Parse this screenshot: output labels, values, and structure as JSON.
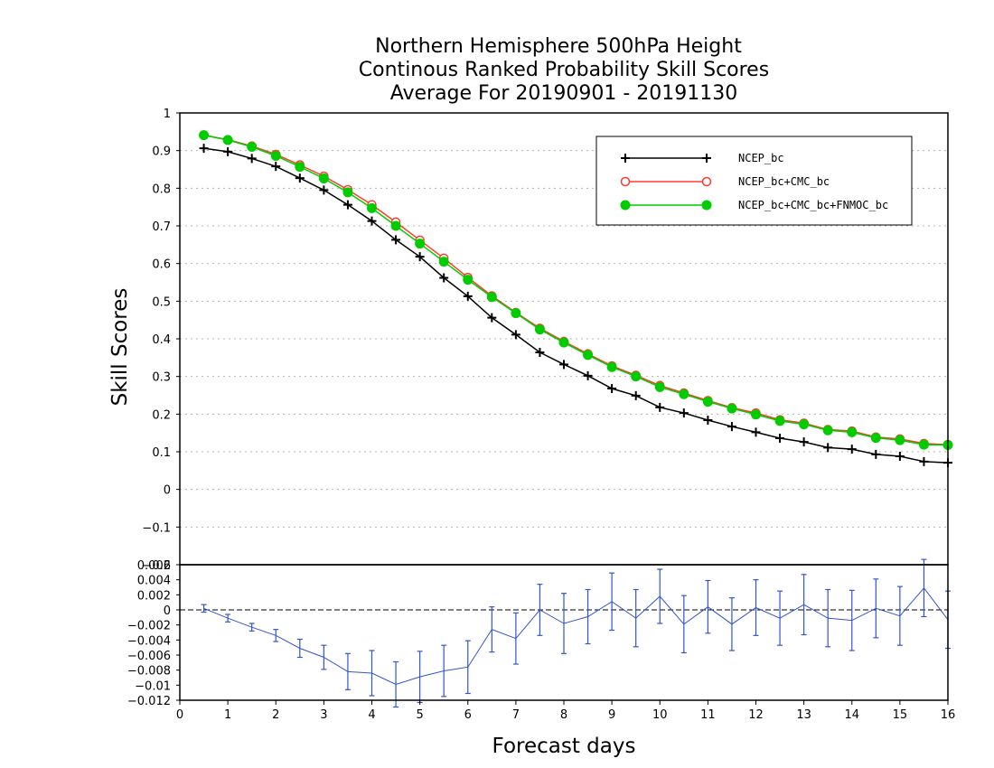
{
  "chart_data": [
    {
      "type": "line",
      "title": [
        "Northern Hemisphere 500hPa Height",
        "Continous Ranked Probability Skill Scores",
        "Average For 20190901 - 20191130"
      ],
      "xlabel": "Forecast days",
      "ylabel": "Skill Scores",
      "xlim": [
        0,
        16
      ],
      "ylim": [
        -0.2,
        1
      ],
      "grid": true,
      "legend_position": "top-right",
      "x": [
        0.5,
        1,
        1.5,
        2,
        2.5,
        3,
        3.5,
        4,
        4.5,
        5,
        5.5,
        6,
        6.5,
        7,
        7.5,
        8,
        8.5,
        9,
        9.5,
        10,
        10.5,
        11,
        11.5,
        12,
        12.5,
        13,
        13.5,
        14,
        14.5,
        15,
        15.5,
        16
      ],
      "series": [
        {
          "name": "NCEP_bc",
          "color": "#000000",
          "marker": "plus",
          "values": [
            0.906,
            0.897,
            0.879,
            0.858,
            0.827,
            0.795,
            0.756,
            0.713,
            0.663,
            0.618,
            0.562,
            0.513,
            0.456,
            0.411,
            0.364,
            0.332,
            0.302,
            0.268,
            0.249,
            0.218,
            0.203,
            0.184,
            0.167,
            0.152,
            0.136,
            0.126,
            0.111,
            0.107,
            0.093,
            0.088,
            0.074,
            0.071
          ]
        },
        {
          "name": "NCEP_bc+CMC_bc",
          "color": "#ff3b2f",
          "marker": "open-circle",
          "values": [
            0.941,
            0.929,
            0.912,
            0.89,
            0.862,
            0.832,
            0.796,
            0.756,
            0.71,
            0.662,
            0.614,
            0.563,
            0.514,
            0.47,
            0.428,
            0.393,
            0.36,
            0.328,
            0.303,
            0.276,
            0.256,
            0.236,
            0.217,
            0.203,
            0.185,
            0.176,
            0.159,
            0.155,
            0.139,
            0.134,
            0.122,
            0.119
          ]
        },
        {
          "name": "NCEP_bc+CMC_bc+FNMOC_bc",
          "color": "#00cc00",
          "marker": "filled-circle",
          "values": [
            0.941,
            0.928,
            0.91,
            0.886,
            0.857,
            0.826,
            0.789,
            0.747,
            0.7,
            0.653,
            0.605,
            0.557,
            0.511,
            0.468,
            0.425,
            0.39,
            0.357,
            0.325,
            0.3,
            0.272,
            0.253,
            0.233,
            0.215,
            0.199,
            0.182,
            0.173,
            0.157,
            0.152,
            0.137,
            0.131,
            0.119,
            0.118
          ]
        }
      ]
    },
    {
      "type": "line",
      "xlim": [
        0,
        16
      ],
      "ylim": [
        -0.012,
        0.006
      ],
      "x_ticks": [
        0,
        1,
        2,
        3,
        4,
        5,
        6,
        7,
        8,
        9,
        10,
        11,
        12,
        13,
        14,
        15,
        16
      ],
      "y_ticks": [
        "0.006",
        "0.004",
        "0.002",
        "0",
        "-0.002",
        "-0.004",
        "-0.006",
        "-0.008",
        "-0.01",
        "-0.012"
      ],
      "zero_line": true,
      "x": [
        0.5,
        1,
        1.5,
        2,
        2.5,
        3,
        3.5,
        4,
        4.5,
        5,
        5.5,
        6,
        6.5,
        7,
        7.5,
        8,
        8.5,
        9,
        9.5,
        10,
        10.5,
        11,
        11.5,
        12,
        12.5,
        13,
        13.5,
        14,
        14.5,
        15,
        15.5,
        16
      ],
      "series": [
        {
          "color": "#3355cc",
          "values": [
            0.0002,
            -0.0011,
            -0.0023,
            -0.0034,
            -0.0051,
            -0.0063,
            -0.0082,
            -0.0084,
            -0.0099,
            -0.0089,
            -0.0081,
            -0.0076,
            -0.0026,
            -0.0038,
            0.0,
            -0.0018,
            -0.0009,
            0.0011,
            -0.0011,
            0.0018,
            -0.0019,
            0.0004,
            -0.0019,
            0.0003,
            -0.0011,
            0.0007,
            -0.0011,
            -0.0014,
            0.0002,
            -0.0008,
            0.0029,
            -0.0013
          ],
          "err_low": [
            -0.0003,
            -0.0016,
            -0.0028,
            -0.0042,
            -0.0063,
            -0.0079,
            -0.0106,
            -0.0114,
            -0.0129,
            -0.0123,
            -0.0115,
            -0.0111,
            -0.0056,
            -0.0072,
            -0.0034,
            -0.0058,
            -0.0045,
            -0.0027,
            -0.0049,
            -0.0018,
            -0.0057,
            -0.0031,
            -0.0054,
            -0.0034,
            -0.0047,
            -0.0033,
            -0.0049,
            -0.0054,
            -0.0037,
            -0.0047,
            -0.0009,
            -0.0051
          ],
          "err_high": [
            0.0007,
            -0.0006,
            -0.0018,
            -0.0026,
            -0.0039,
            -0.0047,
            -0.0058,
            -0.0054,
            -0.0069,
            -0.0055,
            -0.0047,
            -0.0041,
            0.0004,
            -0.0004,
            0.0034,
            0.0022,
            0.0027,
            0.0049,
            0.0027,
            0.0054,
            0.0019,
            0.0039,
            0.0016,
            0.004,
            0.0025,
            0.0047,
            0.0027,
            0.0026,
            0.0041,
            0.0031,
            0.0067,
            0.0025
          ]
        }
      ]
    }
  ]
}
